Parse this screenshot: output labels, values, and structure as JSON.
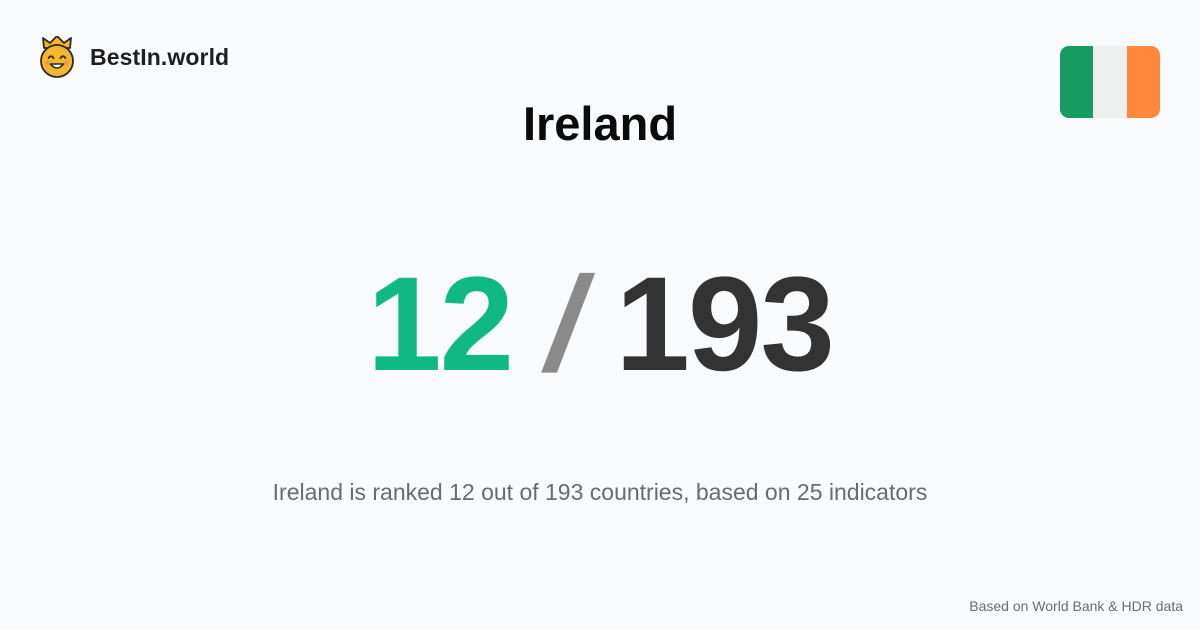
{
  "brand": {
    "name": "BestIn.world",
    "logo_icon": "crowned-smiley-icon"
  },
  "country": {
    "name": "Ireland",
    "flag_icon": "ireland-flag-icon",
    "flag_colors": [
      "#169b62",
      "#eef0ef",
      "#ff883e"
    ]
  },
  "ranking": {
    "rank": "12",
    "separator": "/",
    "total": "193",
    "rank_color": "#10b981"
  },
  "summary": "Ireland is ranked 12 out of 193 countries, based on 25 indicators",
  "footer": {
    "source": "Based on World Bank & HDR data"
  }
}
